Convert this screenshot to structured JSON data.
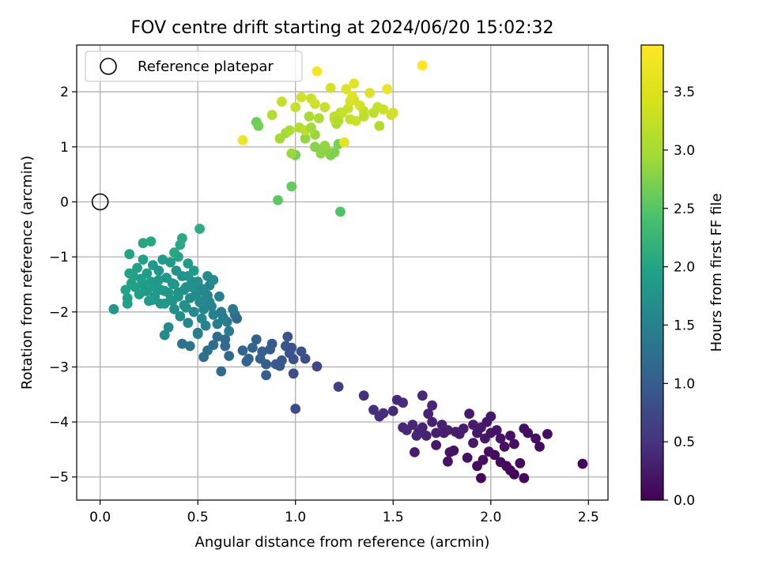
{
  "chart_data": {
    "type": "scatter",
    "title": "FOV centre drift starting at 2024/06/20 15:02:32",
    "xlabel": "Angular distance from reference (arcmin)",
    "ylabel": "Rotation from reference (arcmin)",
    "xlim": [
      -0.12,
      2.6
    ],
    "ylim": [
      -5.42,
      2.85
    ],
    "xticks": [
      0.0,
      0.5,
      1.0,
      1.5,
      2.0,
      2.5
    ],
    "xtick_labels": [
      "0.0",
      "0.5",
      "1.0",
      "1.5",
      "2.0",
      "2.5"
    ],
    "yticks": [
      -5,
      -4,
      -3,
      -2,
      -1,
      0,
      1,
      2
    ],
    "ytick_labels": [
      "−5",
      "−4",
      "−3",
      "−2",
      "−1",
      "0",
      "1",
      "2"
    ],
    "grid": true,
    "legend": {
      "position": "upper-left",
      "entries": [
        "Reference platepar"
      ]
    },
    "reference_point": {
      "x": 0.0,
      "y": 0.0,
      "label": "Reference platepar"
    },
    "colorbar": {
      "label": "Hours from first FF file",
      "range": [
        0.0,
        3.9
      ],
      "ticks": [
        0.0,
        0.5,
        1.0,
        1.5,
        2.0,
        2.5,
        3.0,
        3.5
      ],
      "tick_labels": [
        "0.0",
        "0.5",
        "1.0",
        "1.5",
        "2.0",
        "2.5",
        "3.0",
        "3.5"
      ],
      "colormap": "viridis"
    },
    "points": [
      [
        2.47,
        -4.76,
        0.05
      ],
      [
        2.17,
        -5.02,
        0.08
      ],
      [
        2.12,
        -4.95,
        0.06
      ],
      [
        2.1,
        -4.88,
        0.07
      ],
      [
        2.15,
        -4.75,
        0.1
      ],
      [
        2.08,
        -4.8,
        0.09
      ],
      [
        2.05,
        -4.73,
        0.12
      ],
      [
        2.02,
        -4.6,
        0.11
      ],
      [
        1.95,
        -5.02,
        0.08
      ],
      [
        1.96,
        -4.69,
        0.15
      ],
      [
        1.93,
        -4.8,
        0.13
      ],
      [
        1.88,
        -4.65,
        0.18
      ],
      [
        1.78,
        -4.72,
        0.2
      ],
      [
        1.79,
        -4.55,
        0.22
      ],
      [
        1.81,
        -4.52,
        0.21
      ],
      [
        1.72,
        -4.42,
        0.25
      ],
      [
        1.61,
        -4.55,
        0.3
      ],
      [
        2.25,
        -4.45,
        0.12
      ],
      [
        2.23,
        -4.3,
        0.14
      ],
      [
        2.29,
        -4.22,
        0.13
      ],
      [
        2.19,
        -4.2,
        0.15
      ],
      [
        2.17,
        -4.12,
        0.16
      ],
      [
        2.12,
        -4.4,
        0.17
      ],
      [
        2.07,
        -4.45,
        0.18
      ],
      [
        2.05,
        -4.3,
        0.2
      ],
      [
        2.03,
        -4.15,
        0.22
      ],
      [
        1.98,
        -4.0,
        0.24
      ],
      [
        2.0,
        -3.9,
        0.25
      ],
      [
        1.97,
        -4.3,
        0.23
      ],
      [
        1.93,
        -4.2,
        0.26
      ],
      [
        1.91,
        -4.05,
        0.28
      ],
      [
        1.89,
        -3.85,
        0.29
      ],
      [
        1.86,
        -4.12,
        0.3
      ],
      [
        1.82,
        -4.18,
        0.31
      ],
      [
        1.78,
        -4.15,
        0.33
      ],
      [
        1.75,
        -4.05,
        0.34
      ],
      [
        1.72,
        -4.2,
        0.35
      ],
      [
        1.7,
        -4.0,
        0.36
      ],
      [
        1.68,
        -3.85,
        0.38
      ],
      [
        1.65,
        -4.1,
        0.39
      ],
      [
        1.62,
        -4.25,
        0.4
      ],
      [
        1.6,
        -4.05,
        0.42
      ],
      [
        1.57,
        -4.15,
        0.43
      ],
      [
        1.55,
        -4.1,
        0.44
      ],
      [
        1.52,
        -3.6,
        0.46
      ],
      [
        1.5,
        -3.8,
        0.47
      ],
      [
        1.45,
        -3.84,
        0.5
      ],
      [
        1.4,
        -3.78,
        0.52
      ],
      [
        1.35,
        -3.52,
        0.55
      ],
      [
        1.65,
        -3.52,
        0.45
      ],
      [
        1.7,
        -3.7,
        0.4
      ],
      [
        1.67,
        -4.25,
        0.37
      ],
      [
        1.76,
        -4.2,
        0.32
      ],
      [
        1.84,
        -4.22,
        0.3
      ],
      [
        1.95,
        -4.1,
        0.27
      ],
      [
        2.0,
        -4.2,
        0.21
      ],
      [
        2.1,
        -4.25,
        0.19
      ],
      [
        1.99,
        -4.54,
        0.16
      ],
      [
        1.91,
        -4.38,
        0.27
      ],
      [
        1.63,
        -4.18,
        0.41
      ],
      [
        1.55,
        -3.65,
        0.48
      ],
      [
        1.43,
        -3.9,
        0.51
      ],
      [
        1.22,
        -3.36,
        0.75
      ],
      [
        1.11,
        -2.99,
        0.85
      ],
      [
        1.0,
        -3.76,
        0.9
      ],
      [
        0.99,
        -3.12,
        0.95
      ],
      [
        0.99,
        -2.86,
        1.0
      ],
      [
        0.97,
        -2.75,
        1.02
      ],
      [
        0.95,
        -2.62,
        1.05
      ],
      [
        0.93,
        -2.88,
        1.08
      ],
      [
        0.9,
        -2.95,
        1.1
      ],
      [
        0.88,
        -2.58,
        1.12
      ],
      [
        0.85,
        -2.95,
        1.15
      ],
      [
        0.85,
        -3.15,
        1.16
      ],
      [
        0.83,
        -2.72,
        1.18
      ],
      [
        0.82,
        -2.85,
        1.2
      ],
      [
        0.8,
        -2.5,
        1.22
      ],
      [
        0.78,
        -2.65,
        1.24
      ],
      [
        0.75,
        -2.9,
        1.25
      ],
      [
        0.73,
        -2.7,
        1.27
      ],
      [
        0.7,
        -2.12,
        1.3
      ],
      [
        0.66,
        -2.8,
        1.32
      ],
      [
        0.64,
        -2.62,
        1.34
      ],
      [
        0.62,
        -3.08,
        1.35
      ],
      [
        0.6,
        -2.45,
        1.37
      ],
      [
        0.58,
        -2.6,
        1.39
      ],
      [
        0.55,
        -2.7,
        1.4
      ],
      [
        0.53,
        -2.82,
        1.42
      ],
      [
        0.5,
        -2.38,
        1.45
      ],
      [
        0.46,
        -2.62,
        1.48
      ],
      [
        0.42,
        -2.58,
        1.5
      ],
      [
        1.03,
        -2.72,
        0.98
      ],
      [
        0.98,
        -2.65,
        1.0
      ],
      [
        0.96,
        -2.45,
        1.04
      ],
      [
        1.05,
        -2.85,
        0.93
      ],
      [
        0.92,
        -2.98,
        1.07
      ],
      [
        0.87,
        -2.68,
        1.14
      ],
      [
        0.76,
        -2.85,
        1.26
      ],
      [
        0.64,
        -2.5,
        1.35
      ],
      [
        0.69,
        -2.05,
        1.36
      ],
      [
        0.68,
        -1.95,
        1.6
      ],
      [
        0.66,
        -2.35,
        1.58
      ],
      [
        0.65,
        -2.18,
        1.62
      ],
      [
        0.63,
        -2.1,
        1.65
      ],
      [
        0.62,
        -2.0,
        1.67
      ],
      [
        0.61,
        -1.72,
        1.7
      ],
      [
        0.6,
        -2.22,
        1.68
      ],
      [
        0.58,
        -2.05,
        1.72
      ],
      [
        0.57,
        -1.9,
        1.74
      ],
      [
        0.56,
        -1.52,
        1.76
      ],
      [
        0.55,
        -1.7,
        1.78
      ],
      [
        0.54,
        -2.25,
        1.73
      ],
      [
        0.53,
        -1.95,
        1.8
      ],
      [
        0.52,
        -1.58,
        1.82
      ],
      [
        0.52,
        -2.12,
        1.79
      ],
      [
        0.51,
        -1.82,
        1.84
      ],
      [
        0.5,
        -2.4,
        1.7
      ],
      [
        0.49,
        -1.62,
        1.86
      ],
      [
        0.48,
        -2.0,
        1.85
      ],
      [
        0.47,
        -1.45,
        1.88
      ],
      [
        0.46,
        -1.75,
        1.9
      ],
      [
        0.45,
        -2.2,
        1.83
      ],
      [
        0.44,
        -1.55,
        1.92
      ],
      [
        0.43,
        -1.88,
        1.94
      ],
      [
        0.42,
        -1.35,
        1.96
      ],
      [
        0.41,
        -2.08,
        1.91
      ],
      [
        0.4,
        -1.65,
        1.98
      ],
      [
        0.39,
        -1.25,
        2.0
      ],
      [
        0.38,
        -1.95,
        1.97
      ],
      [
        0.37,
        -1.48,
        2.02
      ],
      [
        0.36,
        -1.78,
        2.03
      ],
      [
        0.35,
        -2.28,
        1.89
      ],
      [
        0.34,
        -1.38,
        2.05
      ],
      [
        0.33,
        -2.42,
        1.87
      ],
      [
        0.33,
        -1.62,
        2.06
      ],
      [
        0.32,
        -1.05,
        2.1
      ],
      [
        0.31,
        -1.85,
        2.04
      ],
      [
        0.3,
        -1.25,
        2.08
      ],
      [
        0.29,
        -1.55,
        2.09
      ],
      [
        0.28,
        -1.72,
        2.07
      ],
      [
        0.27,
        -1.15,
        2.12
      ],
      [
        0.26,
        -1.45,
        2.13
      ],
      [
        0.25,
        -1.8,
        2.11
      ],
      [
        0.24,
        -1.3,
        2.15
      ],
      [
        0.23,
        -1.62,
        2.14
      ],
      [
        0.22,
        -1.05,
        2.18
      ],
      [
        0.21,
        -1.4,
        2.17
      ],
      [
        0.2,
        -1.68,
        2.16
      ],
      [
        0.19,
        -1.2,
        2.2
      ],
      [
        0.18,
        -1.55,
        2.19
      ],
      [
        0.17,
        -1.35,
        2.21
      ],
      [
        0.16,
        -1.48,
        2.22
      ],
      [
        0.15,
        -1.3,
        2.23
      ],
      [
        0.14,
        -1.75,
        2.2
      ],
      [
        0.13,
        -1.6,
        2.24
      ],
      [
        0.14,
        -1.85,
        2.18
      ],
      [
        0.07,
        -1.95,
        2.05
      ],
      [
        0.15,
        -0.95,
        2.25
      ],
      [
        0.22,
        -0.75,
        2.3
      ],
      [
        0.26,
        -0.72,
        2.32
      ],
      [
        0.38,
        -0.92,
        2.35
      ],
      [
        0.41,
        -0.78,
        2.33
      ],
      [
        0.42,
        -0.66,
        2.38
      ],
      [
        0.51,
        -0.49,
        2.4
      ],
      [
        0.4,
        -1.0,
        2.28
      ],
      [
        0.45,
        -1.35,
        2.05
      ],
      [
        0.47,
        -1.55,
        2.0
      ],
      [
        0.36,
        -1.1,
        2.12
      ],
      [
        0.58,
        -1.42,
        1.9
      ],
      [
        0.45,
        -1.12,
        2.15
      ],
      [
        0.52,
        -1.8,
        1.85
      ],
      [
        0.28,
        -1.55,
        2.1
      ],
      [
        0.3,
        -1.42,
        2.09
      ],
      [
        0.33,
        -1.85,
        2.06
      ],
      [
        0.38,
        -1.5,
        2.05
      ],
      [
        0.4,
        -1.72,
        2.0
      ],
      [
        0.44,
        -1.92,
        1.95
      ],
      [
        0.48,
        -1.25,
        2.1
      ],
      [
        0.5,
        -1.45,
        1.95
      ],
      [
        0.55,
        -1.35,
        1.88
      ],
      [
        0.22,
        -1.5,
        2.15
      ],
      [
        0.24,
        -1.62,
        2.12
      ],
      [
        0.27,
        -1.78,
        2.1
      ],
      [
        0.31,
        -1.6,
        2.08
      ],
      [
        0.35,
        -1.65,
        2.06
      ],
      [
        0.37,
        -1.8,
        2.02
      ],
      [
        0.43,
        -1.6,
        1.96
      ],
      [
        0.49,
        -1.7,
        1.9
      ],
      [
        0.53,
        -1.62,
        1.86
      ],
      [
        0.56,
        -1.82,
        1.8
      ],
      [
        0.91,
        0.03,
        2.9
      ],
      [
        0.98,
        0.28,
        2.95
      ],
      [
        1.23,
        -0.18,
        2.8
      ],
      [
        1.22,
        1.05,
        3.1
      ],
      [
        1.2,
        0.9,
        3.15
      ],
      [
        1.18,
        0.85,
        3.12
      ],
      [
        1.15,
        0.95,
        3.2
      ],
      [
        1.13,
        0.88,
        3.22
      ],
      [
        1.1,
        1.0,
        3.18
      ],
      [
        1.05,
        1.15,
        3.25
      ],
      [
        1.0,
        0.85,
        3.05
      ],
      [
        0.98,
        0.88,
        3.3
      ],
      [
        0.95,
        1.25,
        3.35
      ],
      [
        0.92,
        1.15,
        3.38
      ],
      [
        0.8,
        1.45,
        3.0
      ],
      [
        0.81,
        1.38,
        3.05
      ],
      [
        0.88,
        1.58,
        3.45
      ],
      [
        0.93,
        1.82,
        3.55
      ],
      [
        0.73,
        1.12,
        3.8
      ],
      [
        1.0,
        1.72,
        3.55
      ],
      [
        1.02,
        1.35,
        3.45
      ],
      [
        1.05,
        1.3,
        3.5
      ],
      [
        1.07,
        1.55,
        3.4
      ],
      [
        1.08,
        1.88,
        3.6
      ],
      [
        1.1,
        1.78,
        3.62
      ],
      [
        1.11,
        2.37,
        3.85
      ],
      [
        1.12,
        1.52,
        3.42
      ],
      [
        1.15,
        1.72,
        3.58
      ],
      [
        1.18,
        2.07,
        3.65
      ],
      [
        1.2,
        1.55,
        3.48
      ],
      [
        1.21,
        1.42,
        3.4
      ],
      [
        1.23,
        1.62,
        3.52
      ],
      [
        1.25,
        1.08,
        3.75
      ],
      [
        1.26,
        2.05,
        3.7
      ],
      [
        1.28,
        1.5,
        3.55
      ],
      [
        1.3,
        1.85,
        3.62
      ],
      [
        1.3,
        2.15,
        3.75
      ],
      [
        1.31,
        1.47,
        3.6
      ],
      [
        1.33,
        1.75,
        3.65
      ],
      [
        1.35,
        1.65,
        3.58
      ],
      [
        1.38,
        1.98,
        3.7
      ],
      [
        1.4,
        1.62,
        3.5
      ],
      [
        1.42,
        1.72,
        3.55
      ],
      [
        1.43,
        1.38,
        3.45
      ],
      [
        1.45,
        1.68,
        3.6
      ],
      [
        1.47,
        2.05,
        3.8
      ],
      [
        1.49,
        1.58,
        3.62
      ],
      [
        1.5,
        1.62,
        3.65
      ],
      [
        1.65,
        2.48,
        3.9
      ],
      [
        1.2,
        1.5,
        3.5
      ],
      [
        1.27,
        1.7,
        3.6
      ],
      [
        1.03,
        1.9,
        3.65
      ],
      [
        1.16,
        0.93,
        3.2
      ],
      [
        0.97,
        1.3,
        3.4
      ],
      [
        1.22,
        1.48,
        3.45
      ],
      [
        1.28,
        1.83,
        3.68
      ],
      [
        1.1,
        1.22,
        3.3
      ],
      [
        1.08,
        1.35,
        3.35
      ],
      [
        1.15,
        1.02,
        3.25
      ],
      [
        1.35,
        1.55,
        3.52
      ],
      [
        1.24,
        1.62,
        3.56
      ],
      [
        1.29,
        1.92,
        3.72
      ]
    ]
  }
}
